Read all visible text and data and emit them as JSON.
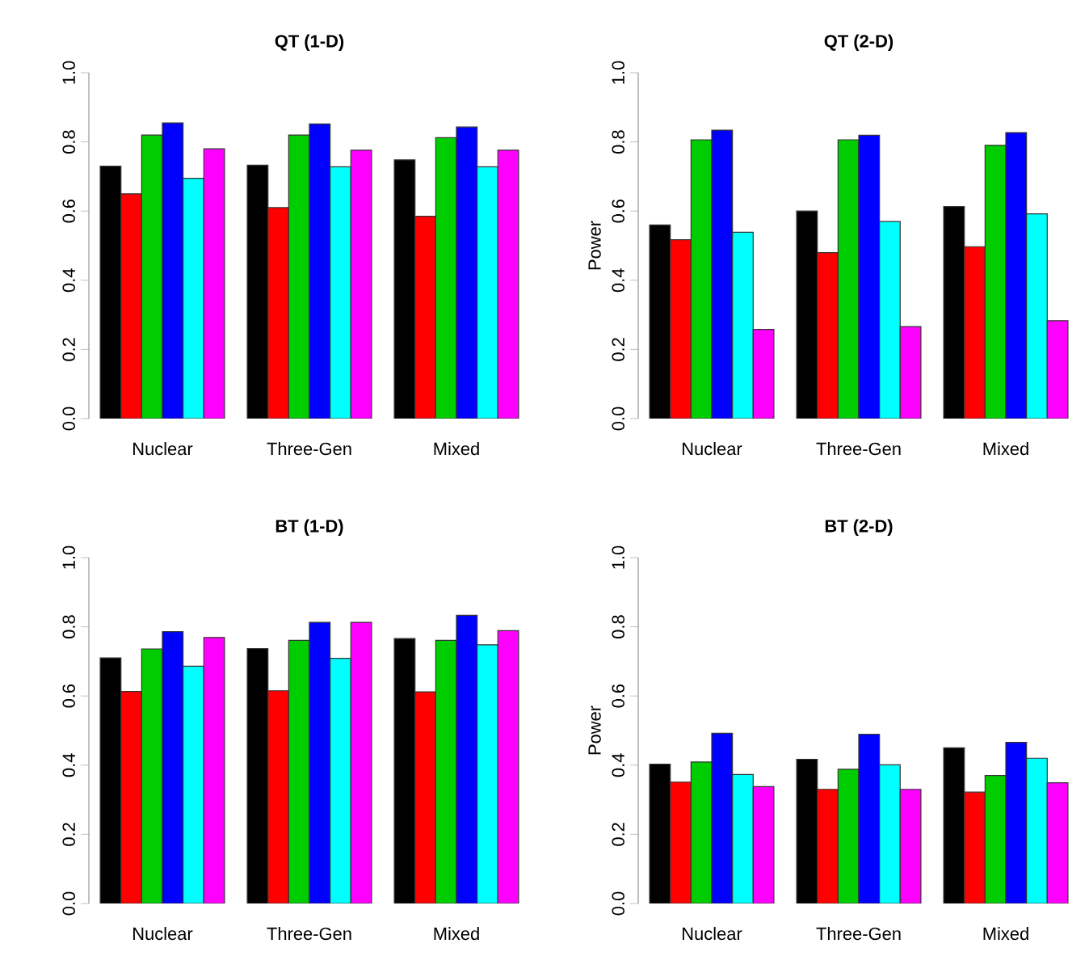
{
  "chart_data": [
    {
      "type": "bar",
      "title": "QT (1-D)",
      "categories": [
        "Nuclear",
        "Three-Gen",
        "Mixed"
      ],
      "ylim": [
        0,
        1
      ],
      "yticks": [
        {
          "value": 0,
          "label": "0.0"
        },
        {
          "value": 0.2,
          "label": "0.2"
        },
        {
          "value": 0.4,
          "label": "0.4"
        },
        {
          "value": 0.6,
          "label": "0.6"
        },
        {
          "value": 0.8,
          "label": "0.8"
        },
        {
          "value": 1,
          "label": "1.0"
        }
      ],
      "series": [
        {
          "color": "#000000",
          "values": [
            0.73,
            0.733,
            0.748
          ]
        },
        {
          "color": "#ff0000",
          "values": [
            0.65,
            0.61,
            0.585
          ]
        },
        {
          "color": "#00cd00",
          "values": [
            0.82,
            0.82,
            0.812
          ]
        },
        {
          "color": "#0000ff",
          "values": [
            0.855,
            0.852,
            0.843
          ]
        },
        {
          "color": "#00ffff",
          "values": [
            0.695,
            0.728,
            0.728
          ]
        },
        {
          "color": "#ff00ff",
          "values": [
            0.78,
            0.776,
            0.776
          ]
        }
      ]
    },
    {
      "type": "bar",
      "title": "QT (2-D)",
      "ylabel": "Power",
      "categories": [
        "Nuclear",
        "Three-Gen",
        "Mixed"
      ],
      "ylim": [
        0,
        1
      ],
      "yticks": [
        {
          "value": 0,
          "label": "0.0"
        },
        {
          "value": 0.2,
          "label": "0.2"
        },
        {
          "value": 0.4,
          "label": "0.4"
        },
        {
          "value": 0.6,
          "label": "0.6"
        },
        {
          "value": 0.8,
          "label": "0.8"
        },
        {
          "value": 1,
          "label": "1.0"
        }
      ],
      "series": [
        {
          "color": "#000000",
          "values": [
            0.56,
            0.6,
            0.613
          ]
        },
        {
          "color": "#ff0000",
          "values": [
            0.517,
            0.48,
            0.497
          ]
        },
        {
          "color": "#00cd00",
          "values": [
            0.806,
            0.806,
            0.79
          ]
        },
        {
          "color": "#0000ff",
          "values": [
            0.834,
            0.819,
            0.827
          ]
        },
        {
          "color": "#00ffff",
          "values": [
            0.539,
            0.57,
            0.592
          ]
        },
        {
          "color": "#ff00ff",
          "values": [
            0.258,
            0.266,
            0.283
          ]
        }
      ]
    },
    {
      "type": "bar",
      "title": "BT (1-D)",
      "categories": [
        "Nuclear",
        "Three-Gen",
        "Mixed"
      ],
      "ylim": [
        0,
        1
      ],
      "yticks": [
        {
          "value": 0,
          "label": "0.0"
        },
        {
          "value": 0.2,
          "label": "0.2"
        },
        {
          "value": 0.4,
          "label": "0.4"
        },
        {
          "value": 0.6,
          "label": "0.6"
        },
        {
          "value": 0.8,
          "label": "0.8"
        },
        {
          "value": 1,
          "label": "1.0"
        }
      ],
      "series": [
        {
          "color": "#000000",
          "values": [
            0.71,
            0.737,
            0.766
          ]
        },
        {
          "color": "#ff0000",
          "values": [
            0.613,
            0.615,
            0.612
          ]
        },
        {
          "color": "#00cd00",
          "values": [
            0.736,
            0.761,
            0.761
          ]
        },
        {
          "color": "#0000ff",
          "values": [
            0.786,
            0.813,
            0.833
          ]
        },
        {
          "color": "#00ffff",
          "values": [
            0.686,
            0.709,
            0.748
          ]
        },
        {
          "color": "#ff00ff",
          "values": [
            0.769,
            0.813,
            0.789
          ]
        }
      ]
    },
    {
      "type": "bar",
      "title": "BT (2-D)",
      "ylabel": "Power",
      "categories": [
        "Nuclear",
        "Three-Gen",
        "Mixed"
      ],
      "ylim": [
        0,
        1
      ],
      "yticks": [
        {
          "value": 0,
          "label": "0.0"
        },
        {
          "value": 0.2,
          "label": "0.2"
        },
        {
          "value": 0.4,
          "label": "0.4"
        },
        {
          "value": 0.6,
          "label": "0.6"
        },
        {
          "value": 0.8,
          "label": "0.8"
        },
        {
          "value": 1,
          "label": "1.0"
        }
      ],
      "series": [
        {
          "color": "#000000",
          "values": [
            0.403,
            0.417,
            0.45
          ]
        },
        {
          "color": "#ff0000",
          "values": [
            0.351,
            0.33,
            0.322
          ]
        },
        {
          "color": "#00cd00",
          "values": [
            0.409,
            0.388,
            0.37
          ]
        },
        {
          "color": "#0000ff",
          "values": [
            0.492,
            0.489,
            0.466
          ]
        },
        {
          "color": "#00ffff",
          "values": [
            0.373,
            0.401,
            0.42
          ]
        },
        {
          "color": "#ff00ff",
          "values": [
            0.338,
            0.33,
            0.349
          ]
        }
      ]
    }
  ]
}
